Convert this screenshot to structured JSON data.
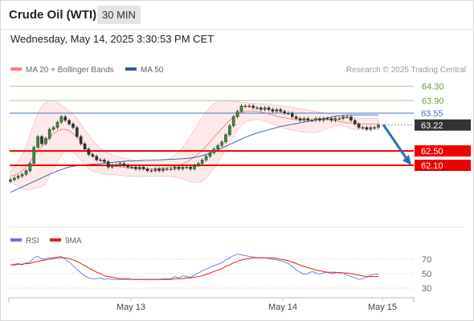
{
  "header": {
    "instrument": "Crude Oil (WTI)",
    "timeframe": "30 MIN",
    "datetime": "Wednesday, May 14, 2025 3:30:53 PM CET"
  },
  "legend": {
    "bb_label": "MA 20 + Bollinger Bands",
    "ma50_label": "MA 50",
    "credit": "Research © 2025 Trading Central",
    "rsi_label": "RSI",
    "rsi_ma_label": "9MA"
  },
  "colors": {
    "bollinger": "#f08080",
    "ma50": "#2e5d9f",
    "resistance": "#a9d18e",
    "pivot": "#4472c4",
    "support": "#ee0000",
    "price_box": "#333333",
    "arrow": "#2e6db4",
    "rsi": "#5b7fd6",
    "rsi_ma": "#e02020"
  },
  "chart_data": {
    "type": "candlestick",
    "x_ticks": [
      "May 13",
      "May 14",
      "May 15"
    ],
    "y_range": [
      61.2,
      64.6
    ],
    "levels": [
      {
        "label": "64.30",
        "value": 64.3,
        "kind": "resistance"
      },
      {
        "label": "63.90",
        "value": 63.9,
        "kind": "resistance"
      },
      {
        "label": "63.55",
        "value": 63.55,
        "kind": "pivot"
      },
      {
        "label": "63.22",
        "value": 63.22,
        "kind": "last"
      },
      {
        "label": "62.50",
        "value": 62.5,
        "kind": "support"
      },
      {
        "label": "62.10",
        "value": 62.1,
        "kind": "support"
      }
    ],
    "closes": [
      61.7,
      61.75,
      61.8,
      61.85,
      61.95,
      62.15,
      62.6,
      62.9,
      62.7,
      62.85,
      63.1,
      63.15,
      63.3,
      63.45,
      63.35,
      63.25,
      63.15,
      62.9,
      62.7,
      62.55,
      62.4,
      62.35,
      62.25,
      62.25,
      62.2,
      62.05,
      62.1,
      62.1,
      62.15,
      62.1,
      62.05,
      62.05,
      62.0,
      62.05,
      62.0,
      61.95,
      61.95,
      62.0,
      61.95,
      62.0,
      62.0,
      62.0,
      62.05,
      62.0,
      62.05,
      62.05,
      62.0,
      62.1,
      62.15,
      62.25,
      62.35,
      62.45,
      62.55,
      62.65,
      62.75,
      62.95,
      63.2,
      63.45,
      63.6,
      63.75,
      63.75,
      63.75,
      63.7,
      63.7,
      63.65,
      63.7,
      63.65,
      63.6,
      63.65,
      63.6,
      63.55,
      63.55,
      63.45,
      63.4,
      63.35,
      63.4,
      63.35,
      63.35,
      63.4,
      63.35,
      63.4,
      63.4,
      63.35,
      63.4,
      63.4,
      63.45,
      63.45,
      63.35,
      63.25,
      63.15,
      63.15,
      63.1,
      63.15,
      63.15,
      63.22
    ],
    "ma20": [
      61.8,
      61.82,
      61.88,
      61.95,
      62.05,
      62.2,
      62.35,
      62.5,
      62.62,
      62.75,
      62.88,
      62.98,
      63.05,
      63.1,
      63.1,
      63.06,
      62.98,
      62.88,
      62.76,
      62.63,
      62.5,
      62.4,
      62.32,
      62.25,
      62.19,
      62.14,
      62.1,
      62.08,
      62.06,
      62.04,
      62.03,
      62.02,
      62.01,
      62.0,
      62.0,
      62.0,
      62.0,
      62.0,
      62.01,
      62.02,
      62.03,
      62.05,
      62.07,
      62.1,
      62.14,
      62.19,
      62.25,
      62.33,
      62.42,
      62.52,
      62.63,
      62.75,
      62.88,
      63.0,
      63.12,
      63.24,
      63.35,
      63.45,
      63.52,
      63.58,
      63.6,
      63.61,
      63.61,
      63.6,
      63.58,
      63.56,
      63.53,
      63.5,
      63.47,
      63.44,
      63.42,
      63.4,
      63.38,
      63.37,
      63.36,
      63.36,
      63.36,
      63.36,
      63.37,
      63.38,
      63.38,
      63.37,
      63.36,
      63.34,
      63.32,
      63.3,
      63.28,
      63.27,
      63.26,
      63.25,
      63.25,
      63.25,
      63.25,
      63.25,
      63.25
    ],
    "bb_upper": [
      61.95,
      62.05,
      62.2,
      62.4,
      62.65,
      62.95,
      63.25,
      63.55,
      63.75,
      63.85,
      63.9,
      63.9,
      63.85,
      63.78,
      63.7,
      63.62,
      63.52,
      63.4,
      63.25,
      63.1,
      62.95,
      62.8,
      62.68,
      62.58,
      62.5,
      62.44,
      62.39,
      62.35,
      62.32,
      62.3,
      62.28,
      62.26,
      62.24,
      62.22,
      62.21,
      62.2,
      62.2,
      62.2,
      62.21,
      62.23,
      62.26,
      62.3,
      62.38,
      62.48,
      62.6,
      62.75,
      62.92,
      63.1,
      63.28,
      63.45,
      63.6,
      63.72,
      63.82,
      63.88,
      63.9,
      63.9,
      63.89,
      63.88,
      63.87,
      63.86,
      63.85,
      63.84,
      63.83,
      63.82,
      63.81,
      63.8,
      63.79,
      63.78,
      63.77,
      63.76,
      63.75,
      63.74,
      63.72,
      63.7,
      63.68,
      63.66,
      63.64,
      63.62,
      63.6,
      63.58,
      63.56,
      63.54,
      63.52,
      63.5,
      63.48,
      63.46,
      63.44,
      63.43,
      63.42,
      63.41,
      63.41,
      63.41,
      63.41,
      63.41,
      63.41
    ],
    "bb_lower": [
      61.65,
      61.58,
      61.5,
      61.45,
      61.42,
      61.42,
      61.45,
      61.48,
      61.5,
      61.6,
      61.8,
      62.02,
      62.2,
      62.38,
      62.48,
      62.52,
      62.48,
      62.38,
      62.25,
      62.12,
      62.0,
      61.94,
      61.9,
      61.88,
      61.86,
      61.85,
      61.84,
      61.83,
      61.82,
      61.81,
      61.8,
      61.79,
      61.79,
      61.79,
      61.79,
      61.8,
      61.8,
      61.8,
      61.8,
      61.8,
      61.79,
      61.79,
      61.77,
      61.75,
      61.72,
      61.68,
      61.64,
      61.62,
      61.62,
      61.66,
      61.75,
      61.88,
      62.02,
      62.18,
      62.35,
      62.52,
      62.72,
      62.92,
      63.08,
      63.2,
      63.3,
      63.34,
      63.36,
      63.37,
      63.36,
      63.33,
      63.29,
      63.24,
      63.2,
      63.16,
      63.13,
      63.1,
      63.08,
      63.06,
      63.04,
      63.02,
      63.01,
      63.01,
      63.01,
      63.04,
      63.08,
      63.12,
      63.16,
      63.2,
      63.22,
      63.2,
      63.16,
      63.12,
      63.1,
      63.1,
      63.1,
      63.1,
      63.1,
      63.1,
      63.1
    ],
    "ma50": [
      61.35,
      61.4,
      61.45,
      61.5,
      61.55,
      61.6,
      61.65,
      61.7,
      61.75,
      61.8,
      61.85,
      61.9,
      61.94,
      61.98,
      62.02,
      62.05,
      62.07,
      62.09,
      62.1,
      62.11,
      62.12,
      62.13,
      62.14,
      62.15,
      62.16,
      62.17,
      62.18,
      62.19,
      62.2,
      62.21,
      62.22,
      62.22,
      62.23,
      62.23,
      62.24,
      62.24,
      62.24,
      62.25,
      62.25,
      62.26,
      62.26,
      62.27,
      62.27,
      62.28,
      62.28,
      62.29,
      62.3,
      62.32,
      62.34,
      62.37,
      62.4,
      62.44,
      62.48,
      62.53,
      62.58,
      62.63,
      62.68,
      62.73,
      62.78,
      62.83,
      62.88,
      62.92,
      62.96,
      63.0,
      63.03,
      63.06,
      63.09,
      63.12,
      63.15,
      63.18,
      63.2,
      63.22,
      63.24,
      63.26,
      63.28,
      63.3,
      63.32,
      63.34,
      63.36,
      63.38,
      63.4,
      63.42,
      63.44,
      63.46,
      63.48,
      63.49,
      63.5,
      63.5,
      63.5,
      63.5,
      63.5,
      63.5,
      63.5,
      63.5,
      63.5
    ],
    "arrow": {
      "from": 63.2,
      "to": 62.1
    },
    "rsi": {
      "ticks": [
        70,
        50,
        30
      ],
      "y_range": [
        20,
        80
      ],
      "values": [
        62,
        63,
        64,
        62,
        65,
        66,
        72,
        74,
        70,
        71,
        72,
        72,
        73,
        74,
        70,
        66,
        61,
        56,
        51,
        47,
        44,
        43,
        43,
        44,
        42,
        43,
        42,
        42,
        42,
        42,
        42,
        42,
        42,
        42,
        42,
        42,
        42,
        42,
        42,
        43,
        43,
        43,
        46,
        44,
        47,
        46,
        45,
        48,
        51,
        54,
        56,
        59,
        61,
        63,
        65,
        69,
        72,
        75,
        77,
        76,
        75,
        74,
        73,
        72,
        72,
        72,
        71,
        70,
        69,
        68,
        66,
        64,
        60,
        55,
        52,
        49,
        50,
        53,
        51,
        49,
        51,
        52,
        50,
        51,
        52,
        51,
        48,
        46,
        44,
        42,
        43,
        45,
        48,
        49,
        50
      ],
      "ma9": [
        62,
        62,
        63,
        63,
        64,
        64,
        66,
        67,
        68,
        69,
        70,
        71,
        72,
        72,
        72,
        71,
        69,
        67,
        64,
        61,
        58,
        55,
        52,
        50,
        47,
        46,
        45,
        44,
        43,
        43,
        43,
        42,
        42,
        42,
        42,
        42,
        42,
        42,
        42,
        42,
        42,
        42,
        43,
        43,
        43,
        44,
        44,
        45,
        46,
        47,
        49,
        51,
        53,
        55,
        57,
        60,
        62,
        65,
        67,
        69,
        70,
        71,
        72,
        72,
        72,
        72,
        72,
        72,
        71,
        70,
        69,
        68,
        66,
        64,
        62,
        60,
        58,
        57,
        55,
        54,
        53,
        52,
        52,
        52,
        51,
        51,
        51,
        50,
        49,
        48,
        47,
        46,
        46,
        46,
        46
      ]
    }
  }
}
